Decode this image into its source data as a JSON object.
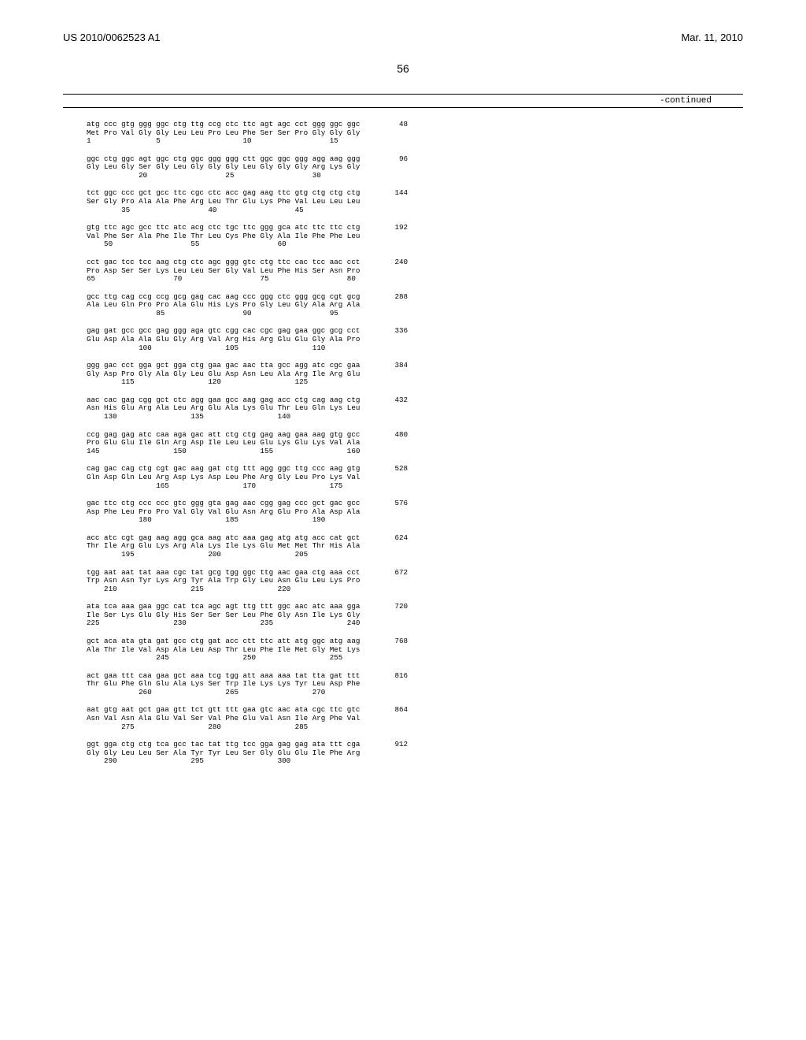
{
  "header": {
    "left": "US 2010/0062523 A1",
    "right": "Mar. 11, 2010"
  },
  "page_number": "56",
  "continued_label": "-continued",
  "sequence_groups": [
    {
      "nuc": "atg ccc gtg ggg ggc ctg ttg ccg ctc ttc agt agc cct ggg ggc ggc",
      "amino": "Met Pro Val Gly Gly Leu Leu Pro Leu Phe Ser Ser Pro Gly Gly Gly",
      "markers": "1               5                   10                  15",
      "end": "48"
    },
    {
      "nuc": "ggc ctg ggc agt ggc ctg ggc ggg ggg ctt ggc ggc ggg agg aag ggg",
      "amino": "Gly Leu Gly Ser Gly Leu Gly Gly Gly Leu Gly Gly Gly Arg Lys Gly",
      "markers": "            20                  25                  30",
      "end": "96"
    },
    {
      "nuc": "tct ggc ccc gct gcc ttc cgc ctc acc gag aag ttc gtg ctg ctg ctg",
      "amino": "Ser Gly Pro Ala Ala Phe Arg Leu Thr Glu Lys Phe Val Leu Leu Leu",
      "markers": "        35                  40                  45",
      "end": "144"
    },
    {
      "nuc": "gtg ttc agc gcc ttc atc acg ctc tgc ttc ggg gca atc ttc ttc ctg",
      "amino": "Val Phe Ser Ala Phe Ile Thr Leu Cys Phe Gly Ala Ile Phe Phe Leu",
      "markers": "    50                  55                  60",
      "end": "192"
    },
    {
      "nuc": "cct gac tcc tcc aag ctg ctc agc ggg gtc ctg ttc cac tcc aac cct",
      "amino": "Pro Asp Ser Ser Lys Leu Leu Ser Gly Val Leu Phe His Ser Asn Pro",
      "markers": "65                  70                  75                  80",
      "end": "240"
    },
    {
      "nuc": "gcc ttg cag ccg ccg gcg gag cac aag ccc ggg ctc ggg gcg cgt gcg",
      "amino": "Ala Leu Gln Pro Pro Ala Glu His Lys Pro Gly Leu Gly Ala Arg Ala",
      "markers": "                85                  90                  95",
      "end": "288"
    },
    {
      "nuc": "gag gat gcc gcc gag ggg aga gtc cgg cac cgc gag gaa ggc gcg cct",
      "amino": "Glu Asp Ala Ala Glu Gly Arg Val Arg His Arg Glu Glu Gly Ala Pro",
      "markers": "            100                 105                 110",
      "end": "336"
    },
    {
      "nuc": "ggg gac cct gga gct gga ctg gaa gac aac tta gcc agg atc cgc gaa",
      "amino": "Gly Asp Pro Gly Ala Gly Leu Glu Asp Asn Leu Ala Arg Ile Arg Glu",
      "markers": "        115                 120                 125",
      "end": "384"
    },
    {
      "nuc": "aac cac gag cgg gct ctc agg gaa gcc aag gag acc ctg cag aag ctg",
      "amino": "Asn His Glu Arg Ala Leu Arg Glu Ala Lys Glu Thr Leu Gln Lys Leu",
      "markers": "    130                 135                 140",
      "end": "432"
    },
    {
      "nuc": "ccg gag gag atc caa aga gac att ctg ctg gag aag gaa aag gtg gcc",
      "amino": "Pro Glu Glu Ile Gln Arg Asp Ile Leu Leu Glu Lys Glu Lys Val Ala",
      "markers": "145                 150                 155                 160",
      "end": "480"
    },
    {
      "nuc": "cag gac cag ctg cgt gac aag gat ctg ttt agg ggc ttg ccc aag gtg",
      "amino": "Gln Asp Gln Leu Arg Asp Lys Asp Leu Phe Arg Gly Leu Pro Lys Val",
      "markers": "                165                 170                 175",
      "end": "528"
    },
    {
      "nuc": "gac ttc ctg ccc ccc gtc ggg gta gag aac cgg gag ccc gct gac gcc",
      "amino": "Asp Phe Leu Pro Pro Val Gly Val Glu Asn Arg Glu Pro Ala Asp Ala",
      "markers": "            180                 185                 190",
      "end": "576"
    },
    {
      "nuc": "acc atc cgt gag aag agg gca aag atc aaa gag atg atg acc cat gct",
      "amino": "Thr Ile Arg Glu Lys Arg Ala Lys Ile Lys Glu Met Met Thr His Ala",
      "markers": "        195                 200                 205",
      "end": "624"
    },
    {
      "nuc": "tgg aat aat tat aaa cgc tat gcg tgg ggc ttg aac gaa ctg aaa cct",
      "amino": "Trp Asn Asn Tyr Lys Arg Tyr Ala Trp Gly Leu Asn Glu Leu Lys Pro",
      "markers": "    210                 215                 220",
      "end": "672"
    },
    {
      "nuc": "ata tca aaa gaa ggc cat tca agc agt ttg ttt ggc aac atc aaa gga",
      "amino": "Ile Ser Lys Glu Gly His Ser Ser Ser Leu Phe Gly Asn Ile Lys Gly",
      "markers": "225                 230                 235                 240",
      "end": "720"
    },
    {
      "nuc": "gct aca ata gta gat gcc ctg gat acc ctt ttc att atg ggc atg aag",
      "amino": "Ala Thr Ile Val Asp Ala Leu Asp Thr Leu Phe Ile Met Gly Met Lys",
      "markers": "                245                 250                 255",
      "end": "768"
    },
    {
      "nuc": "act gaa ttt caa gaa gct aaa tcg tgg att aaa aaa tat tta gat ttt",
      "amino": "Thr Glu Phe Gln Glu Ala Lys Ser Trp Ile Lys Lys Tyr Leu Asp Phe",
      "markers": "            260                 265                 270",
      "end": "816"
    },
    {
      "nuc": "aat gtg aat gct gaa gtt tct gtt ttt gaa gtc aac ata cgc ttc gtc",
      "amino": "Asn Val Asn Ala Glu Val Ser Val Phe Glu Val Asn Ile Arg Phe Val",
      "markers": "        275                 280                 285",
      "end": "864"
    },
    {
      "nuc": "ggt gga ctg ctg tca gcc tac tat ttg tcc gga gag gag ata ttt cga",
      "amino": "Gly Gly Leu Leu Ser Ala Tyr Tyr Leu Ser Gly Glu Glu Ile Phe Arg",
      "markers": "    290                 295                 300",
      "end": "912"
    }
  ]
}
